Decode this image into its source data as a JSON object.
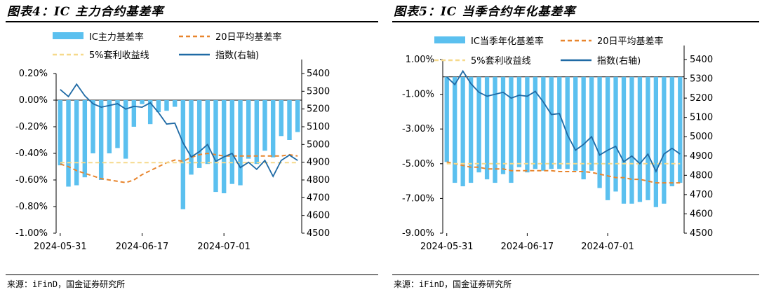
{
  "charts": [
    {
      "title": "图表4：IC 主力合约基差率",
      "source": "来源：iFinD，国金证券研究所",
      "left_ticks": [
        "0.20%",
        "0.00%",
        "-0.20%",
        "-0.40%",
        "-0.60%",
        "-0.80%",
        "-1.00%"
      ],
      "right_ticks": [
        "5400",
        "5300",
        "5200",
        "5100",
        "5000",
        "4900",
        "4800",
        "4700",
        "4600",
        "4500"
      ],
      "x_ticks": [
        "2024-05-31",
        "2024-06-17",
        "2024-07-01"
      ],
      "legend": [
        "IC主力基差率",
        "20日平均基差率",
        "5%套利收益线",
        "指数(右轴)"
      ]
    },
    {
      "title": "图表5：IC 当季合约年化基差率",
      "source": "来源：iFinD，国金证券研究所",
      "left_ticks": [
        "1.00%",
        "-1.00%",
        "-3.00%",
        "-5.00%",
        "-7.00%",
        "-9.00%"
      ],
      "right_ticks": [
        "5400",
        "5300",
        "5200",
        "5100",
        "5000",
        "4900",
        "4800",
        "4700",
        "4600",
        "4500"
      ],
      "x_ticks": [
        "2024-05-31",
        "2024-06-17",
        "2024-07-01"
      ],
      "legend": [
        "IC当季年化基差率",
        "20日平均基差率",
        "5%套利收益线",
        "指数(右轴)"
      ]
    }
  ],
  "chart_data": [
    {
      "type": "bar",
      "title": "图表4：IC 主力合约基差率",
      "x": [
        "2024-05-31",
        "2024-06-03",
        "2024-06-04",
        "2024-06-05",
        "2024-06-06",
        "2024-06-07",
        "2024-06-11",
        "2024-06-12",
        "2024-06-13",
        "2024-06-14",
        "2024-06-17",
        "2024-06-18",
        "2024-06-19",
        "2024-06-20",
        "2024-06-21",
        "2024-06-24",
        "2024-06-25",
        "2024-06-26",
        "2024-06-27",
        "2024-06-28",
        "2024-07-01",
        "2024-07-02",
        "2024-07-03",
        "2024-07-04",
        "2024-07-05",
        "2024-07-08",
        "2024-07-09",
        "2024-07-10",
        "2024-07-11",
        "2024-07-12"
      ],
      "x_ticks": [
        "2024-05-31",
        "2024-06-17",
        "2024-07-01"
      ],
      "left_axis": {
        "min": -1.0,
        "max": 0.2,
        "unit": "%",
        "ticks": [
          0.2,
          0.0,
          -0.2,
          -0.4,
          -0.6,
          -0.8,
          -1.0
        ]
      },
      "right_axis": {
        "min": 4500,
        "max": 5400,
        "ticks": [
          5400,
          5300,
          5200,
          5100,
          5000,
          4900,
          4800,
          4700,
          4600,
          4500
        ]
      },
      "series": [
        {
          "name": "IC主力基差率",
          "kind": "bar",
          "axis": "left",
          "color": "#5bc0ef",
          "values": [
            -0.49,
            -0.65,
            -0.64,
            -0.58,
            -0.4,
            -0.6,
            -0.4,
            -0.36,
            -0.44,
            -0.2,
            -0.03,
            -0.18,
            -0.09,
            -0.08,
            -0.05,
            -0.82,
            -0.56,
            -0.51,
            -0.48,
            -0.69,
            -0.7,
            -0.63,
            -0.64,
            -0.44,
            -0.48,
            -0.38,
            -0.43,
            -0.27,
            -0.3,
            -0.24
          ]
        },
        {
          "name": "20日平均基差率",
          "kind": "line",
          "axis": "left",
          "color": "#e8852d",
          "dash": true,
          "values": [
            -0.48,
            -0.5,
            -0.53,
            -0.55,
            -0.57,
            -0.59,
            -0.6,
            -0.61,
            -0.62,
            -0.6,
            -0.56,
            -0.53,
            -0.5,
            -0.47,
            -0.45,
            -0.46,
            -0.43,
            -0.41,
            -0.4,
            -0.41,
            -0.42,
            -0.42,
            -0.42,
            -0.42,
            -0.42,
            -0.42,
            -0.42,
            -0.42,
            -0.41,
            -0.42
          ]
        },
        {
          "name": "5%套利收益线",
          "kind": "line",
          "axis": "left",
          "color": "#f6d98b",
          "dash": true,
          "values": [
            -0.47,
            -0.47,
            -0.47,
            -0.47,
            -0.47,
            -0.47,
            -0.47,
            -0.47,
            -0.47,
            -0.47,
            -0.47,
            -0.47,
            -0.47,
            -0.47,
            -0.47,
            -0.47,
            -0.47,
            -0.47,
            -0.47,
            -0.47,
            -0.47,
            -0.47,
            -0.47,
            -0.47,
            -0.47,
            -0.47,
            -0.47,
            -0.47,
            -0.47,
            -0.47
          ]
        },
        {
          "name": "指数(右轴)",
          "kind": "line",
          "axis": "right",
          "color": "#1f6aa5",
          "values": [
            5310,
            5270,
            5340,
            5275,
            5230,
            5210,
            5220,
            5230,
            5200,
            5215,
            5210,
            5235,
            5180,
            5115,
            5120,
            5010,
            4930,
            4960,
            5000,
            4905,
            4930,
            4950,
            4870,
            4900,
            4860,
            4910,
            4820,
            4910,
            4940,
            4910
          ]
        }
      ]
    },
    {
      "type": "bar",
      "title": "图表5：IC 当季合约年化基差率",
      "x": [
        "2024-05-31",
        "2024-06-03",
        "2024-06-04",
        "2024-06-05",
        "2024-06-06",
        "2024-06-07",
        "2024-06-11",
        "2024-06-12",
        "2024-06-13",
        "2024-06-14",
        "2024-06-17",
        "2024-06-18",
        "2024-06-19",
        "2024-06-20",
        "2024-06-21",
        "2024-06-24",
        "2024-06-25",
        "2024-06-26",
        "2024-06-27",
        "2024-06-28",
        "2024-07-01",
        "2024-07-02",
        "2024-07-03",
        "2024-07-04",
        "2024-07-05",
        "2024-07-08",
        "2024-07-09",
        "2024-07-10",
        "2024-07-11",
        "2024-07-12"
      ],
      "x_ticks": [
        "2024-05-31",
        "2024-06-17",
        "2024-07-01"
      ],
      "left_axis": {
        "min": -9.0,
        "max": 1.0,
        "unit": "%",
        "ticks": [
          1.0,
          -1.0,
          -3.0,
          -5.0,
          -7.0,
          -9.0
        ]
      },
      "right_axis": {
        "min": 4500,
        "max": 5400,
        "ticks": [
          5400,
          5300,
          5200,
          5100,
          5000,
          4900,
          4800,
          4700,
          4600,
          4500
        ]
      },
      "series": [
        {
          "name": "IC当季年化基差率",
          "kind": "bar",
          "axis": "left",
          "color": "#5bc0ef",
          "values": [
            -4.9,
            -6.1,
            -6.3,
            -6.1,
            -5.5,
            -5.9,
            -6.1,
            -5.6,
            -6.1,
            -5.2,
            -5.5,
            -5.3,
            -5.4,
            -5.3,
            -5.3,
            -5.3,
            -5.4,
            -5.9,
            -5.4,
            -6.4,
            -7.1,
            -6.6,
            -7.3,
            -7.3,
            -7.2,
            -7.1,
            -7.5,
            -7.3,
            -6.3,
            -6.1
          ]
        },
        {
          "name": "20日平均基差率",
          "kind": "line",
          "axis": "left",
          "color": "#e8852d",
          "dash": true,
          "values": [
            -4.9,
            -5.0,
            -5.1,
            -5.2,
            -5.2,
            -5.3,
            -5.3,
            -5.3,
            -5.4,
            -5.4,
            -5.4,
            -5.4,
            -5.4,
            -5.4,
            -5.45,
            -5.45,
            -5.45,
            -5.45,
            -5.5,
            -5.6,
            -5.7,
            -5.8,
            -5.8,
            -5.9,
            -5.9,
            -6.0,
            -6.1,
            -6.1,
            -6.1,
            -6.1
          ]
        },
        {
          "name": "5%套利收益线",
          "kind": "line",
          "axis": "left",
          "color": "#f6d98b",
          "dash": true,
          "values": [
            -5.0,
            -5.0,
            -5.0,
            -5.0,
            -5.0,
            -5.0,
            -5.0,
            -5.0,
            -5.0,
            -5.0,
            -5.0,
            -5.0,
            -5.0,
            -5.0,
            -5.0,
            -5.0,
            -5.0,
            -5.0,
            -5.0,
            -5.0,
            -5.0,
            -5.0,
            -5.0,
            -5.0,
            -5.0,
            -5.0,
            -5.0,
            -5.0,
            -5.0,
            -5.0
          ]
        },
        {
          "name": "指数(右轴)",
          "kind": "line",
          "axis": "right",
          "color": "#1f6aa5",
          "values": [
            5310,
            5270,
            5340,
            5275,
            5230,
            5210,
            5220,
            5230,
            5200,
            5215,
            5210,
            5235,
            5180,
            5115,
            5120,
            5010,
            4930,
            4960,
            5000,
            4905,
            4930,
            4950,
            4870,
            4900,
            4860,
            4910,
            4820,
            4910,
            4940,
            4910
          ]
        }
      ]
    }
  ]
}
